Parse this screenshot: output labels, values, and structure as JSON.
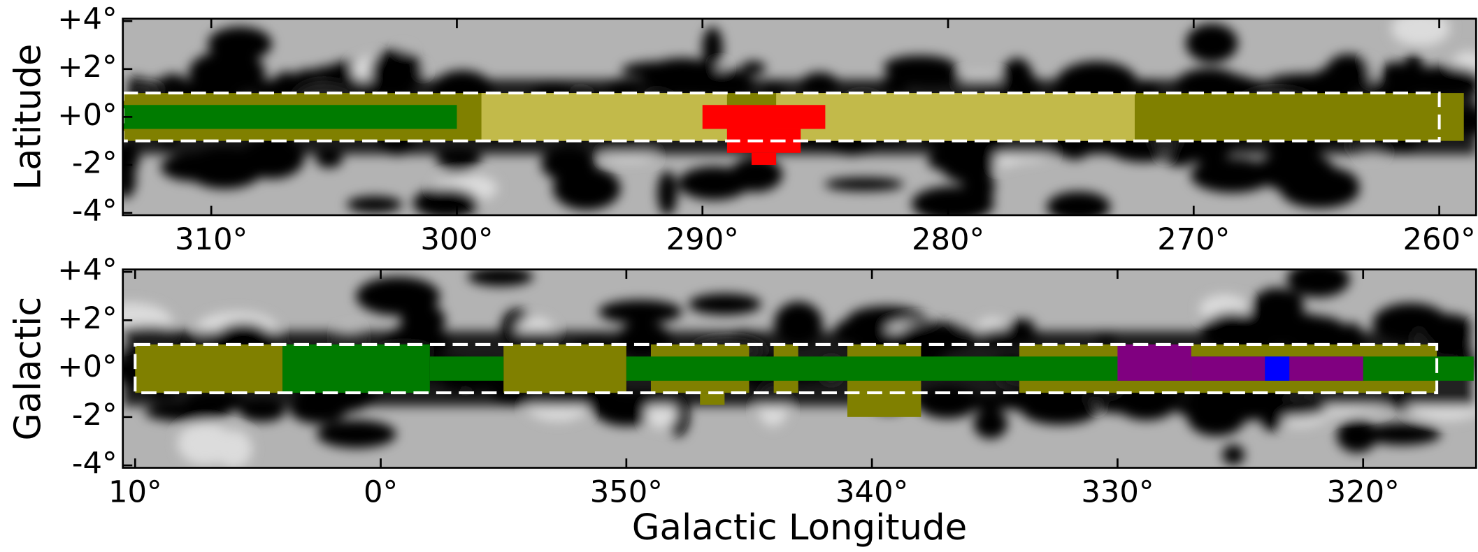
{
  "chart_data": [
    {
      "type": "region_map",
      "ylabel": "Latitude",
      "xlim": [
        313.6,
        258.5
      ],
      "ylim": [
        -4.1,
        4.1
      ],
      "xticks": [
        {
          "value": 310,
          "label": "310°"
        },
        {
          "value": 300,
          "label": "300°"
        },
        {
          "value": 290,
          "label": "290°"
        },
        {
          "value": 280,
          "label": "280°"
        },
        {
          "value": 270,
          "label": "270°"
        },
        {
          "value": 260,
          "label": "260°"
        }
      ],
      "yticks": [
        {
          "value": 4,
          "label": "+4°"
        },
        {
          "value": 2,
          "label": "+2°"
        },
        {
          "value": 0,
          "label": "+0°"
        },
        {
          "value": -2,
          "label": "-2°"
        },
        {
          "value": -4,
          "label": "-4°"
        }
      ],
      "survey_box": {
        "l": [
          313.6,
          260
        ],
        "b": [
          -1,
          1
        ]
      },
      "regions": [
        {
          "color": "#808000",
          "l": [
            313.6,
            259
          ],
          "b": [
            -1,
            1
          ]
        },
        {
          "color": "#c2ba4a",
          "l": [
            299,
            289
          ],
          "b": [
            -1,
            1
          ]
        },
        {
          "color": "#c2ba4a",
          "l": [
            287,
            272.4
          ],
          "b": [
            -1,
            1
          ]
        },
        {
          "color": "#007b00",
          "l": [
            313.6,
            300
          ],
          "b": [
            -0.5,
            0.5
          ]
        },
        {
          "color": "#ff0000",
          "l": [
            290,
            285
          ],
          "b": [
            -0.5,
            0.5
          ]
        },
        {
          "color": "#ff0000",
          "l": [
            289,
            286
          ],
          "b": [
            -1.5,
            -0.5
          ]
        },
        {
          "color": "#ff0000",
          "l": [
            288,
            287
          ],
          "b": [
            -2,
            -1.5
          ]
        }
      ]
    },
    {
      "type": "region_map",
      "ylabel": "Galactic",
      "xlabel": "Galactic Longitude",
      "xlim": [
        10.5,
        -44.6
      ],
      "ylim": [
        -4.1,
        4.1
      ],
      "xticks": [
        {
          "value": 10,
          "label": "10°"
        },
        {
          "value": 0,
          "label": "0°"
        },
        {
          "value": -10,
          "label": "350°"
        },
        {
          "value": -20,
          "label": "340°"
        },
        {
          "value": -30,
          "label": "330°"
        },
        {
          "value": -40,
          "label": "320°"
        }
      ],
      "yticks": [
        {
          "value": 4,
          "label": "+4°"
        },
        {
          "value": 2,
          "label": "+2°"
        },
        {
          "value": 0,
          "label": "+0°"
        },
        {
          "value": -2,
          "label": "-2°"
        },
        {
          "value": -4,
          "label": "-4°"
        }
      ],
      "survey_box": {
        "l": [
          10,
          -43
        ],
        "b": [
          -1,
          1
        ]
      },
      "regions": [
        {
          "color": "#808000",
          "l": [
            10,
            4
          ],
          "b": [
            -1,
            1
          ]
        },
        {
          "color": "#808000",
          "l": [
            -5,
            -10
          ],
          "b": [
            -1,
            1
          ]
        },
        {
          "color": "#808000",
          "l": [
            -11,
            -15
          ],
          "b": [
            -1,
            1
          ]
        },
        {
          "color": "#808000",
          "l": [
            -13,
            -14
          ],
          "b": [
            -1.5,
            -1
          ]
        },
        {
          "color": "#808000",
          "l": [
            -16,
            -17
          ],
          "b": [
            -1,
            1
          ]
        },
        {
          "color": "#808000",
          "l": [
            -19,
            -22
          ],
          "b": [
            -2,
            1
          ]
        },
        {
          "color": "#808000",
          "l": [
            -26,
            -43
          ],
          "b": [
            -1,
            1
          ]
        },
        {
          "color": "#007b00",
          "l": [
            4,
            -2
          ],
          "b": [
            -1,
            1
          ]
        },
        {
          "color": "#007b00",
          "l": [
            -2,
            -5
          ],
          "b": [
            -0.5,
            0.5
          ]
        },
        {
          "color": "#007b00",
          "l": [
            -10,
            -44.5
          ],
          "b": [
            -0.5,
            0.5
          ]
        },
        {
          "color": "#800080",
          "l": [
            -30,
            -33
          ],
          "b": [
            -0.5,
            1
          ]
        },
        {
          "color": "#800080",
          "l": [
            -33,
            -36
          ],
          "b": [
            -0.5,
            0.5
          ]
        },
        {
          "color": "#0000ff",
          "l": [
            -36,
            -37
          ],
          "b": [
            -0.5,
            0.5
          ]
        },
        {
          "color": "#800080",
          "l": [
            -37,
            -40
          ],
          "b": [
            -0.5,
            0.5
          ]
        }
      ]
    }
  ]
}
